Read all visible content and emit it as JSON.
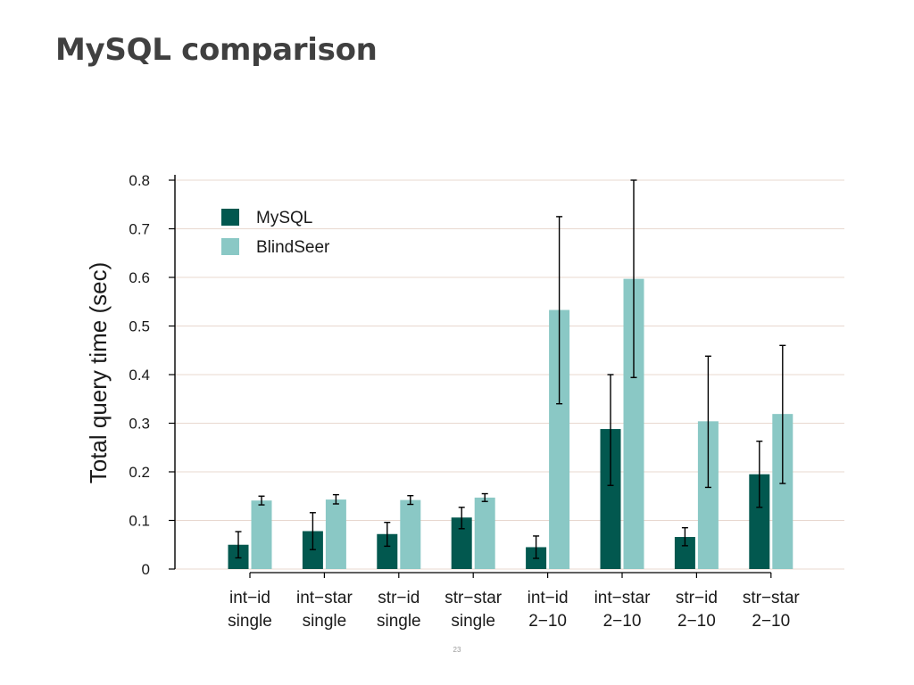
{
  "slide": {
    "title": "MySQL comparison",
    "page_number": "23"
  },
  "colors": {
    "mysql": "#02584f",
    "blindseer": "#8ac8c5",
    "grid": "#e8d8cf",
    "axis": "#000000",
    "text": "#1a1a1a"
  },
  "chart_data": {
    "type": "bar",
    "title": "",
    "xlabel": "",
    "ylabel": "Total query time (sec)",
    "ylim": [
      0,
      0.8
    ],
    "yticks": [
      0,
      0.1,
      0.2,
      0.3,
      0.4,
      0.5,
      0.6,
      0.7,
      0.8
    ],
    "ytick_labels": [
      "0",
      "0.1",
      "0.2",
      "0.3",
      "0.4",
      "0.5",
      "0.6",
      "0.7",
      "0.8"
    ],
    "grid": true,
    "legend_position": "top-left",
    "categories": [
      [
        "int−id",
        "single"
      ],
      [
        "int−star",
        "single"
      ],
      [
        "str−id",
        "single"
      ],
      [
        "str−star",
        "single"
      ],
      [
        "int−id",
        "2−10"
      ],
      [
        "int−star",
        "2−10"
      ],
      [
        "str−id",
        "2−10"
      ],
      [
        "str−star",
        "2−10"
      ]
    ],
    "series": [
      {
        "name": "MySQL",
        "values": [
          0.05,
          0.078,
          0.072,
          0.106,
          0.045,
          0.288,
          0.066,
          0.195
        ],
        "error_low": [
          0.023,
          0.04,
          0.047,
          0.083,
          0.022,
          0.172,
          0.048,
          0.127
        ],
        "error_high": [
          0.077,
          0.116,
          0.096,
          0.127,
          0.068,
          0.4,
          0.085,
          0.263
        ]
      },
      {
        "name": "BlindSeer",
        "values": [
          0.141,
          0.143,
          0.142,
          0.147,
          0.533,
          0.597,
          0.304,
          0.319
        ],
        "error_low": [
          0.132,
          0.134,
          0.133,
          0.139,
          0.34,
          0.394,
          0.168,
          0.176
        ],
        "error_high": [
          0.15,
          0.153,
          0.151,
          0.155,
          0.725,
          0.8,
          0.438,
          0.46
        ]
      }
    ]
  }
}
